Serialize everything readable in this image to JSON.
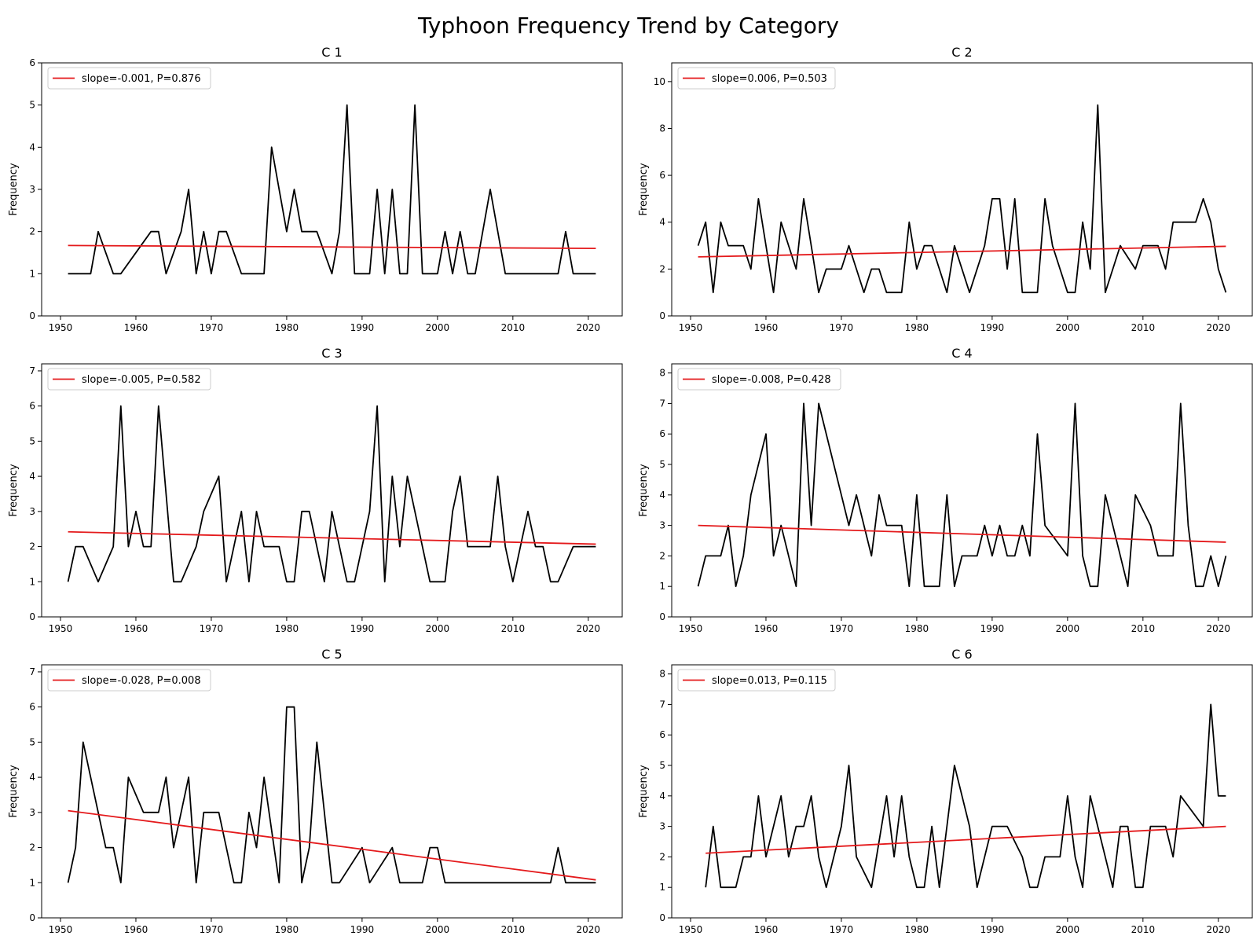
{
  "figure_title": "Typhoon Frequency Trend by Category",
  "colors": {
    "series": "#000000",
    "trend": "#e41a1c",
    "axes": "#000000"
  },
  "chart_data": [
    {
      "type": "line",
      "title": "C 1",
      "ylabel": "Frequency",
      "xlim": [
        1947.5,
        2024.5
      ],
      "ylim": [
        0,
        6
      ],
      "xticks": [
        1950,
        1960,
        1970,
        1980,
        1990,
        2000,
        2010,
        2020
      ],
      "yticks": [
        0,
        1,
        2,
        3,
        4,
        5,
        6
      ],
      "legend": "upper left",
      "legend_label": "slope=-0.001, P=0.876",
      "trend": {
        "x": [
          1951,
          2021
        ],
        "y": [
          1.67,
          1.6
        ]
      },
      "series": [
        {
          "x": [
            1951,
            1954,
            1955,
            1957,
            1958,
            1962,
            1963,
            1964,
            1966,
            1967,
            1968,
            1969,
            1970,
            1971,
            1972,
            1974,
            1977,
            1978,
            1980,
            1981,
            1982,
            1984,
            1986,
            1987,
            1988,
            1989,
            1991,
            1992,
            1993,
            1994,
            1995,
            1996,
            1997,
            1998,
            2000,
            2001,
            2002,
            2003,
            2004,
            2005,
            2007,
            2009,
            2016,
            2017,
            2018,
            2021
          ],
          "y": [
            1,
            1,
            2,
            1,
            1,
            2,
            2,
            1,
            2,
            3,
            1,
            2,
            1,
            2,
            2,
            1,
            1,
            4,
            2,
            3,
            2,
            2,
            1,
            2,
            5,
            1,
            1,
            3,
            1,
            3,
            1,
            1,
            5,
            1,
            1,
            2,
            1,
            2,
            1,
            1,
            3,
            1,
            1,
            2,
            1,
            1
          ]
        }
      ]
    },
    {
      "type": "line",
      "title": "C 2",
      "ylabel": "Frequency",
      "xlim": [
        1947.5,
        2024.5
      ],
      "ylim": [
        0,
        10.8
      ],
      "xticks": [
        1950,
        1960,
        1970,
        1980,
        1990,
        2000,
        2010,
        2020
      ],
      "yticks": [
        0,
        2,
        4,
        6,
        8,
        10
      ],
      "legend": "upper left",
      "legend_label": "slope=0.006, P=0.503",
      "trend": {
        "x": [
          1951,
          2021
        ],
        "y": [
          2.52,
          2.97
        ]
      },
      "series": [
        {
          "x": [
            1951,
            1952,
            1953,
            1954,
            1955,
            1956,
            1957,
            1958,
            1959,
            1960,
            1961,
            1962,
            1963,
            1964,
            1965,
            1966,
            1967,
            1968,
            1970,
            1971,
            1972,
            1973,
            1974,
            1975,
            1976,
            1978,
            1979,
            1980,
            1981,
            1982,
            1983,
            1984,
            1985,
            1987,
            1989,
            1990,
            1991,
            1992,
            1993,
            1994,
            1995,
            1996,
            1997,
            1998,
            2000,
            2001,
            2002,
            2003,
            2004,
            2005,
            2007,
            2009,
            2010,
            2012,
            2013,
            2014,
            2017,
            2018,
            2019,
            2020,
            2021
          ],
          "y": [
            3,
            4,
            1,
            4,
            3,
            3,
            3,
            2,
            5,
            3,
            1,
            4,
            3,
            2,
            5,
            3,
            1,
            2,
            2,
            3,
            2,
            1,
            2,
            2,
            1,
            1,
            4,
            2,
            3,
            3,
            2,
            1,
            3,
            1,
            3,
            5,
            5,
            2,
            5,
            1,
            1,
            1,
            5,
            3,
            1,
            1,
            4,
            2,
            9,
            1,
            3,
            2,
            3,
            3,
            2,
            4,
            4,
            5,
            4,
            2,
            1
          ]
        }
      ]
    },
    {
      "type": "line",
      "title": "C 3",
      "ylabel": "Frequency",
      "xlim": [
        1947.5,
        2024.5
      ],
      "ylim": [
        0,
        7.2
      ],
      "xticks": [
        1950,
        1960,
        1970,
        1980,
        1990,
        2000,
        2010,
        2020
      ],
      "yticks": [
        0,
        1,
        2,
        3,
        4,
        5,
        6,
        7
      ],
      "legend": "upper left",
      "legend_label": "slope=-0.005, P=0.582",
      "trend": {
        "x": [
          1951,
          2021
        ],
        "y": [
          2.42,
          2.07
        ]
      },
      "series": [
        {
          "x": [
            1951,
            1952,
            1953,
            1955,
            1957,
            1958,
            1959,
            1960,
            1961,
            1962,
            1963,
            1965,
            1966,
            1968,
            1969,
            1971,
            1972,
            1974,
            1975,
            1976,
            1977,
            1979,
            1980,
            1981,
            1982,
            1983,
            1985,
            1986,
            1988,
            1989,
            1991,
            1992,
            1993,
            1994,
            1995,
            1996,
            1999,
            2001,
            2002,
            2003,
            2004,
            2007,
            2008,
            2009,
            2010,
            2012,
            2013,
            2014,
            2015,
            2016,
            2018,
            2021
          ],
          "y": [
            1,
            2,
            2,
            1,
            2,
            6,
            2,
            3,
            2,
            2,
            6,
            1,
            1,
            2,
            3,
            4,
            1,
            3,
            1,
            3,
            2,
            2,
            1,
            1,
            3,
            3,
            1,
            3,
            1,
            1,
            3,
            6,
            1,
            4,
            2,
            4,
            1,
            1,
            3,
            4,
            2,
            2,
            4,
            2,
            1,
            3,
            2,
            2,
            1,
            1,
            2,
            2
          ]
        }
      ]
    },
    {
      "type": "line",
      "title": "C 4",
      "ylabel": "Frequency",
      "xlim": [
        1947.5,
        2024.5
      ],
      "ylim": [
        0,
        8.3
      ],
      "xticks": [
        1950,
        1960,
        1970,
        1980,
        1990,
        2000,
        2010,
        2020
      ],
      "yticks": [
        0,
        1,
        2,
        3,
        4,
        5,
        6,
        7,
        8
      ],
      "legend": "upper left",
      "legend_label": "slope=-0.008, P=0.428",
      "trend": {
        "x": [
          1951,
          2021
        ],
        "y": [
          3.0,
          2.45
        ]
      },
      "series": [
        {
          "x": [
            1951,
            1952,
            1954,
            1955,
            1956,
            1957,
            1958,
            1960,
            1961,
            1962,
            1964,
            1965,
            1966,
            1967,
            1971,
            1972,
            1974,
            1975,
            1976,
            1978,
            1979,
            1980,
            1981,
            1983,
            1984,
            1985,
            1986,
            1988,
            1989,
            1990,
            1991,
            1992,
            1993,
            1994,
            1995,
            1996,
            1997,
            2000,
            2001,
            2002,
            2003,
            2004,
            2005,
            2008,
            2009,
            2011,
            2012,
            2014,
            2015,
            2016,
            2017,
            2018,
            2019,
            2020,
            2021
          ],
          "y": [
            1,
            2,
            2,
            3,
            1,
            2,
            4,
            6,
            2,
            3,
            1,
            7,
            3,
            7,
            3,
            4,
            2,
            4,
            3,
            3,
            1,
            4,
            1,
            1,
            4,
            1,
            2,
            2,
            3,
            2,
            3,
            2,
            2,
            3,
            2,
            6,
            3,
            2,
            7,
            2,
            1,
            1,
            4,
            1,
            4,
            3,
            2,
            2,
            7,
            3,
            1,
            1,
            2,
            1,
            2
          ]
        }
      ]
    },
    {
      "type": "line",
      "title": "C 5",
      "ylabel": "Frequency",
      "xlim": [
        1947.5,
        2024.5
      ],
      "ylim": [
        0,
        7.2
      ],
      "xticks": [
        1950,
        1960,
        1970,
        1980,
        1990,
        2000,
        2010,
        2020
      ],
      "yticks": [
        0,
        1,
        2,
        3,
        4,
        5,
        6,
        7
      ],
      "legend": "upper left",
      "legend_label": "slope=-0.028, P=0.008",
      "trend": {
        "x": [
          1951,
          2021
        ],
        "y": [
          3.05,
          1.08
        ]
      },
      "series": [
        {
          "x": [
            1951,
            1952,
            1953,
            1956,
            1957,
            1958,
            1959,
            1961,
            1963,
            1964,
            1965,
            1967,
            1968,
            1969,
            1971,
            1973,
            1974,
            1975,
            1976,
            1977,
            1979,
            1980,
            1981,
            1982,
            1983,
            1984,
            1986,
            1987,
            1990,
            1991,
            1994,
            1995,
            1998,
            1999,
            2000,
            2001,
            2015,
            2016,
            2017,
            2021
          ],
          "y": [
            1,
            2,
            5,
            2,
            2,
            1,
            4,
            3,
            3,
            4,
            2,
            4,
            1,
            3,
            3,
            1,
            1,
            3,
            2,
            4,
            1,
            6,
            6,
            1,
            2,
            5,
            1,
            1,
            2,
            1,
            2,
            1,
            1,
            2,
            2,
            1,
            1,
            2,
            1,
            1
          ]
        }
      ]
    },
    {
      "type": "line",
      "title": "C 6",
      "ylabel": "Frequency",
      "xlim": [
        1947.5,
        2024.5
      ],
      "ylim": [
        0,
        8.3
      ],
      "xticks": [
        1950,
        1960,
        1970,
        1980,
        1990,
        2000,
        2010,
        2020
      ],
      "yticks": [
        0,
        1,
        2,
        3,
        4,
        5,
        6,
        7,
        8
      ],
      "legend": "upper left",
      "legend_label": "slope=0.013, P=0.115",
      "trend": {
        "x": [
          1952,
          2021
        ],
        "y": [
          2.12,
          3.0
        ]
      },
      "series": [
        {
          "x": [
            1952,
            1953,
            1954,
            1956,
            1957,
            1958,
            1959,
            1960,
            1962,
            1963,
            1964,
            1965,
            1966,
            1967,
            1968,
            1970,
            1971,
            1972,
            1974,
            1976,
            1977,
            1978,
            1979,
            1980,
            1981,
            1982,
            1983,
            1985,
            1987,
            1988,
            1990,
            1992,
            1994,
            1995,
            1996,
            1997,
            1999,
            2000,
            2001,
            2002,
            2003,
            2006,
            2007,
            2008,
            2009,
            2010,
            2011,
            2013,
            2014,
            2015,
            2018,
            2019,
            2020,
            2021
          ],
          "y": [
            1,
            3,
            1,
            1,
            2,
            2,
            4,
            2,
            4,
            2,
            3,
            3,
            4,
            2,
            1,
            3,
            5,
            2,
            1,
            4,
            2,
            4,
            2,
            1,
            1,
            3,
            1,
            5,
            3,
            1,
            3,
            3,
            2,
            1,
            1,
            2,
            2,
            4,
            2,
            1,
            4,
            1,
            3,
            3,
            1,
            1,
            3,
            3,
            2,
            4,
            3,
            7,
            4,
            4
          ]
        }
      ]
    }
  ]
}
